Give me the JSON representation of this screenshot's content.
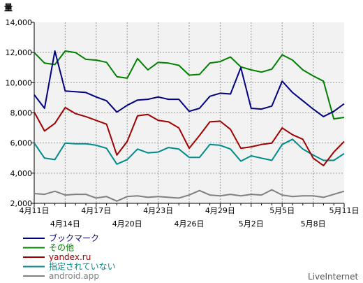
{
  "chart_data": {
    "type": "line",
    "title": "",
    "ylabel": "量",
    "xlabel": "",
    "ylim": [
      2000,
      14000
    ],
    "yticks": [
      "2,000",
      "4,000",
      "6,000",
      "8,000",
      "10,000",
      "12,000",
      "14,000"
    ],
    "xtick_labels_upper": [
      "4月11日",
      "4月17日",
      "4月23日",
      "4月29日",
      "5月5日",
      "5月11日"
    ],
    "xtick_labels_lower": [
      "4月14日",
      "4月20日",
      "4月26日",
      "5月2日",
      "5月8日"
    ],
    "grid": true,
    "legend_position": "bottom-left",
    "x": [
      "4/11",
      "4/12",
      "4/13",
      "4/14",
      "4/15",
      "4/16",
      "4/17",
      "4/18",
      "4/19",
      "4/20",
      "4/21",
      "4/22",
      "4/23",
      "4/24",
      "4/25",
      "4/26",
      "4/27",
      "4/28",
      "4/29",
      "4/30",
      "5/1",
      "5/2",
      "5/3",
      "5/4",
      "5/5",
      "5/6",
      "5/7",
      "5/8",
      "5/9",
      "5/10",
      "5/11"
    ],
    "series": [
      {
        "name": "ブックマーク",
        "color": "#000080",
        "values": [
          9200,
          8300,
          12100,
          9450,
          9400,
          9350,
          9050,
          8800,
          8050,
          8500,
          8850,
          8900,
          9050,
          8900,
          8900,
          8100,
          8300,
          9100,
          9300,
          9250,
          11000,
          8300,
          8250,
          8450,
          10100,
          9350,
          8800,
          8250,
          7750,
          8100,
          8600
        ]
      },
      {
        "name": "その他",
        "color": "#008000",
        "values": [
          12000,
          11300,
          11200,
          12100,
          12000,
          11550,
          11500,
          11350,
          10400,
          10300,
          11600,
          10850,
          11350,
          11300,
          11150,
          10500,
          10550,
          11300,
          11400,
          11700,
          11050,
          10850,
          10700,
          10900,
          11850,
          11500,
          10850,
          10450,
          10100,
          7600,
          7700
        ]
      },
      {
        "name": "yandex.ru",
        "color": "#a00000",
        "values": [
          8050,
          6800,
          7300,
          8350,
          7950,
          7750,
          7500,
          7250,
          5200,
          6100,
          7800,
          7900,
          7500,
          7400,
          7000,
          5650,
          6500,
          7400,
          7450,
          6900,
          5650,
          5750,
          5900,
          6000,
          7000,
          6550,
          6250,
          5000,
          4500,
          5400,
          6100
        ]
      },
      {
        "name": "指定されていない",
        "color": "#008b8b",
        "values": [
          6000,
          5000,
          4900,
          6000,
          5950,
          5950,
          5850,
          5650,
          4600,
          4900,
          5600,
          5350,
          5400,
          5700,
          5600,
          5050,
          5050,
          5900,
          5850,
          5600,
          4800,
          5150,
          5000,
          4850,
          5900,
          6250,
          5600,
          5200,
          4850,
          4850,
          5300
        ]
      },
      {
        "name": "android.app",
        "color": "#808080",
        "values": [
          2650,
          2600,
          2800,
          2550,
          2600,
          2600,
          2350,
          2450,
          2150,
          2450,
          2500,
          2400,
          2450,
          2400,
          2350,
          2550,
          2850,
          2550,
          2500,
          2600,
          2500,
          2600,
          2550,
          2900,
          2550,
          2450,
          2500,
          2500,
          2400,
          2600,
          2800
        ]
      }
    ]
  },
  "branding": {
    "label": "LiveInternet"
  }
}
